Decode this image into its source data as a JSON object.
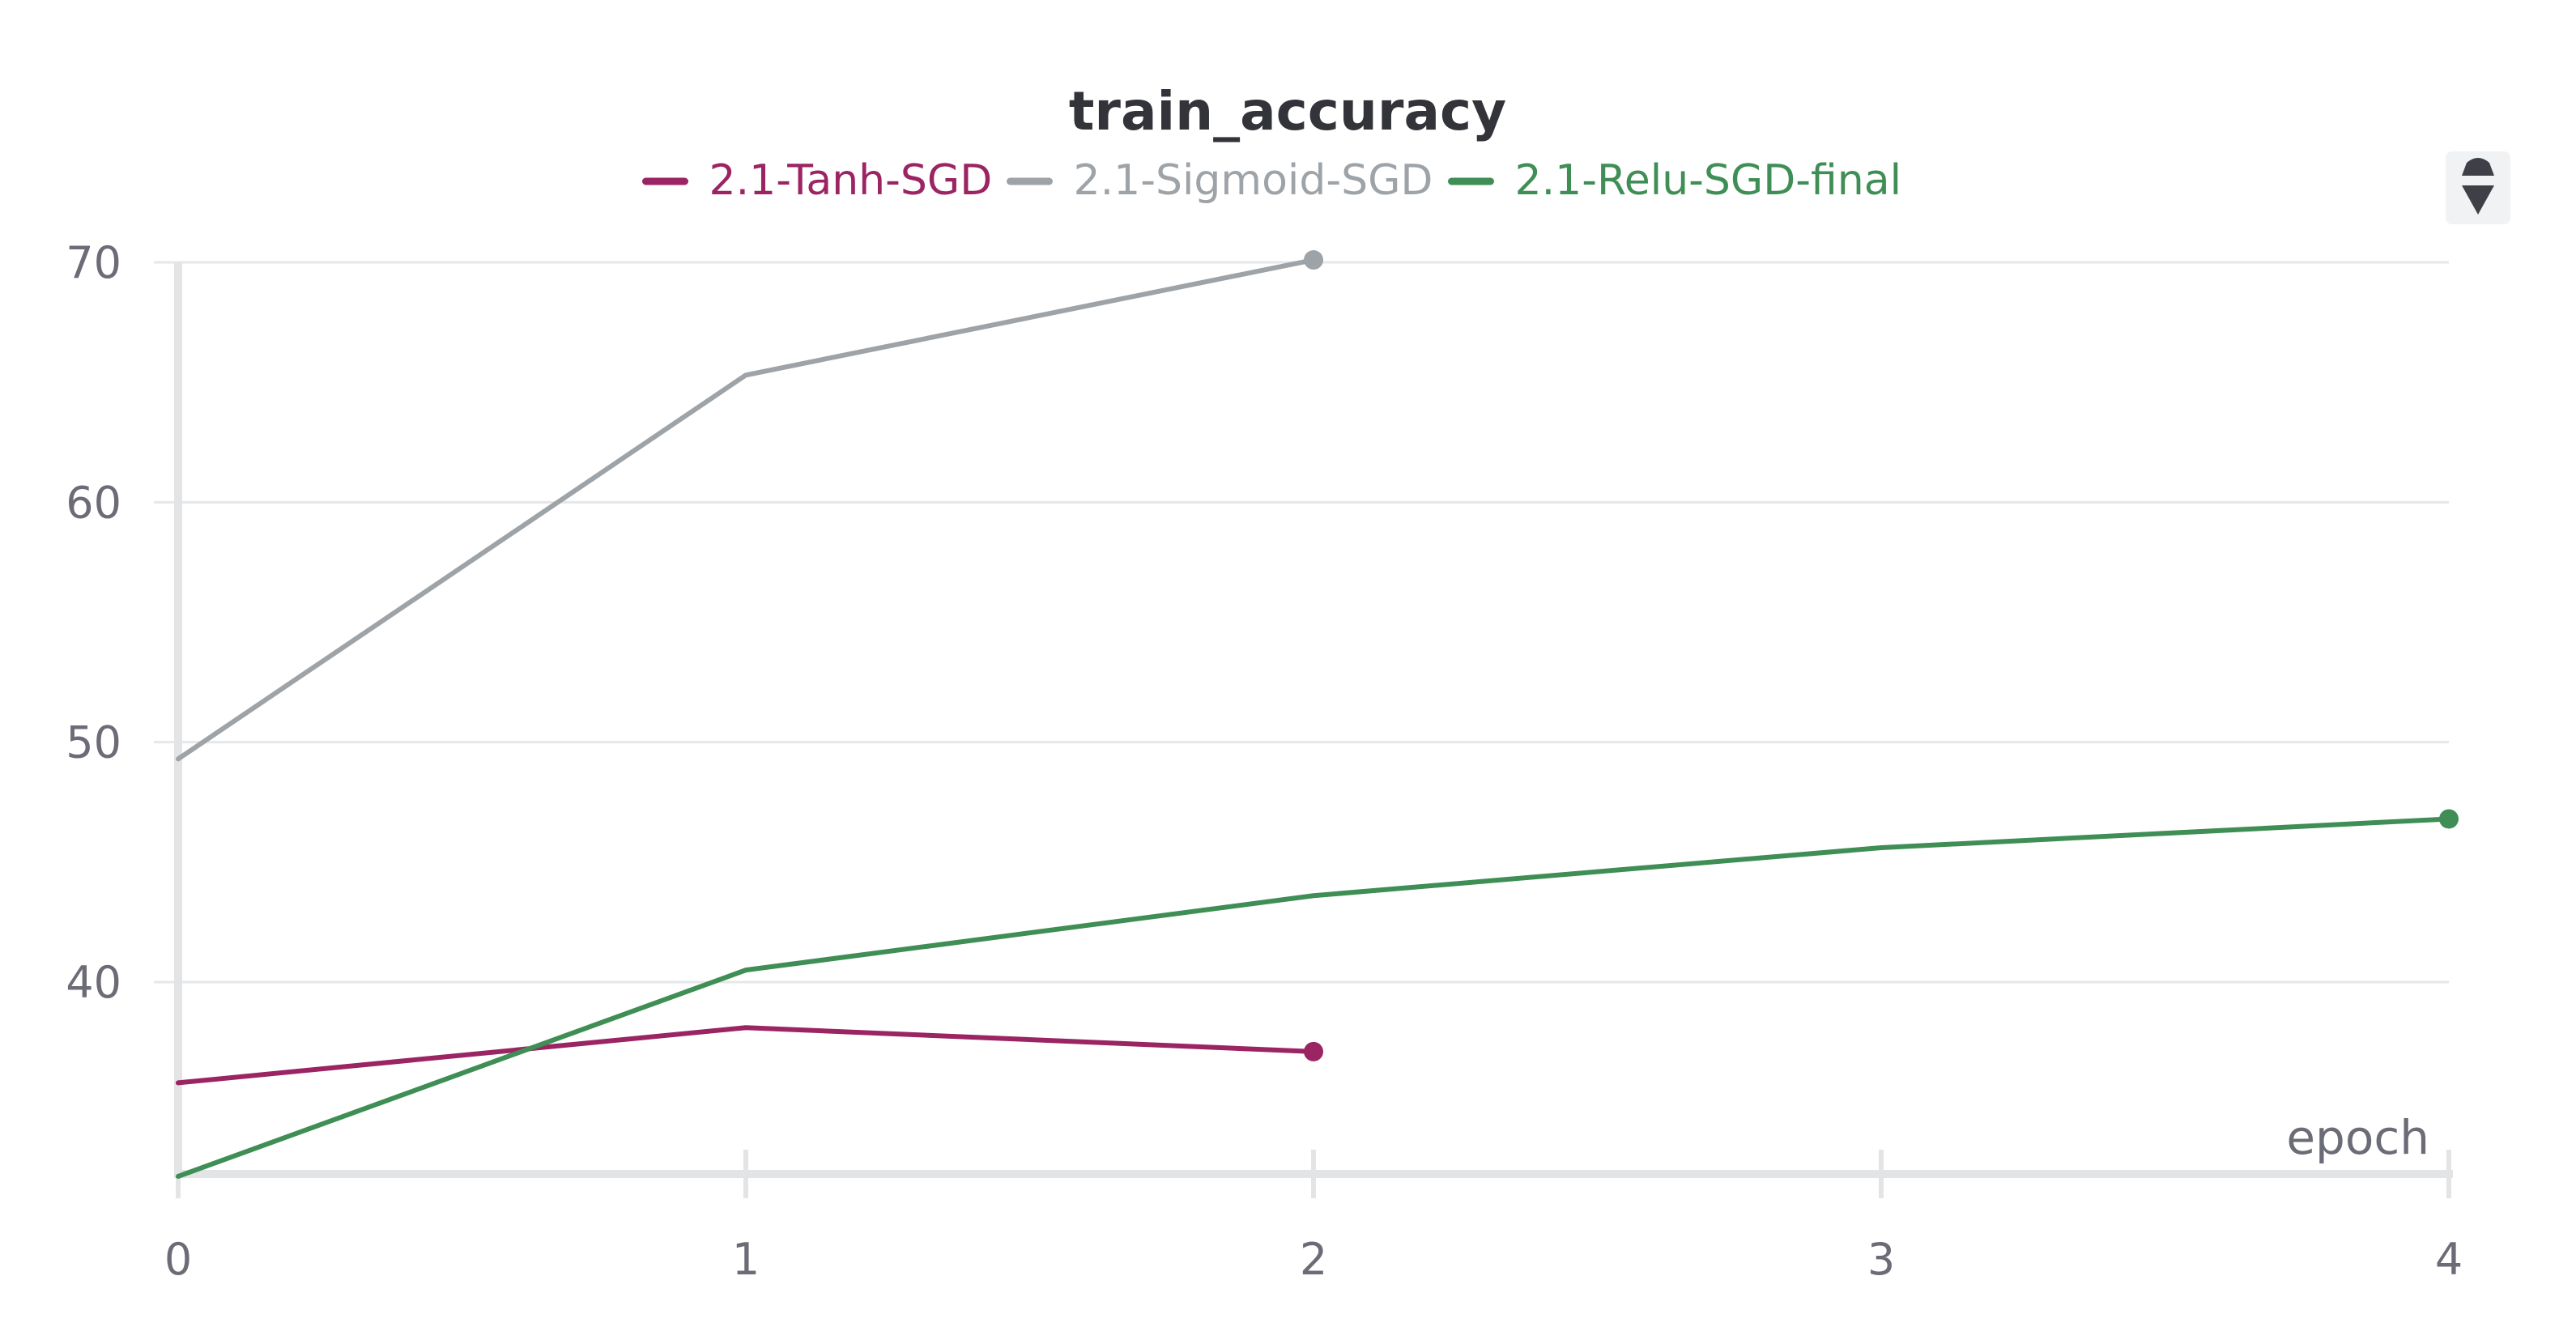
{
  "chart_data": {
    "type": "line",
    "title": "train_accuracy",
    "xlabel": "epoch",
    "ylabel": "",
    "x_ticks": [
      0,
      1,
      2,
      3,
      4
    ],
    "y_ticks": [
      40,
      50,
      60,
      70
    ],
    "xlim": [
      0,
      4
    ],
    "ylim": [
      32,
      70
    ],
    "grid": true,
    "legend_position": "top-center",
    "series": [
      {
        "name": "2.1-Tanh-SGD",
        "color": "#9b2463",
        "x": [
          0,
          1,
          2
        ],
        "y": [
          35.8,
          38.1,
          37.1
        ]
      },
      {
        "name": "2.1-Sigmoid-SGD",
        "color": "#9ea3a8",
        "x": [
          0,
          1,
          2
        ],
        "y": [
          49.3,
          65.3,
          70.1
        ]
      },
      {
        "name": "2.1-Relu-SGD-final",
        "color": "#3f8e55",
        "x": [
          0,
          1,
          2,
          3,
          4
        ],
        "y": [
          31.9,
          40.5,
          43.6,
          45.6,
          46.8
        ]
      }
    ]
  },
  "controls": {
    "scroll_icon": "up-down-chevron-icon"
  }
}
